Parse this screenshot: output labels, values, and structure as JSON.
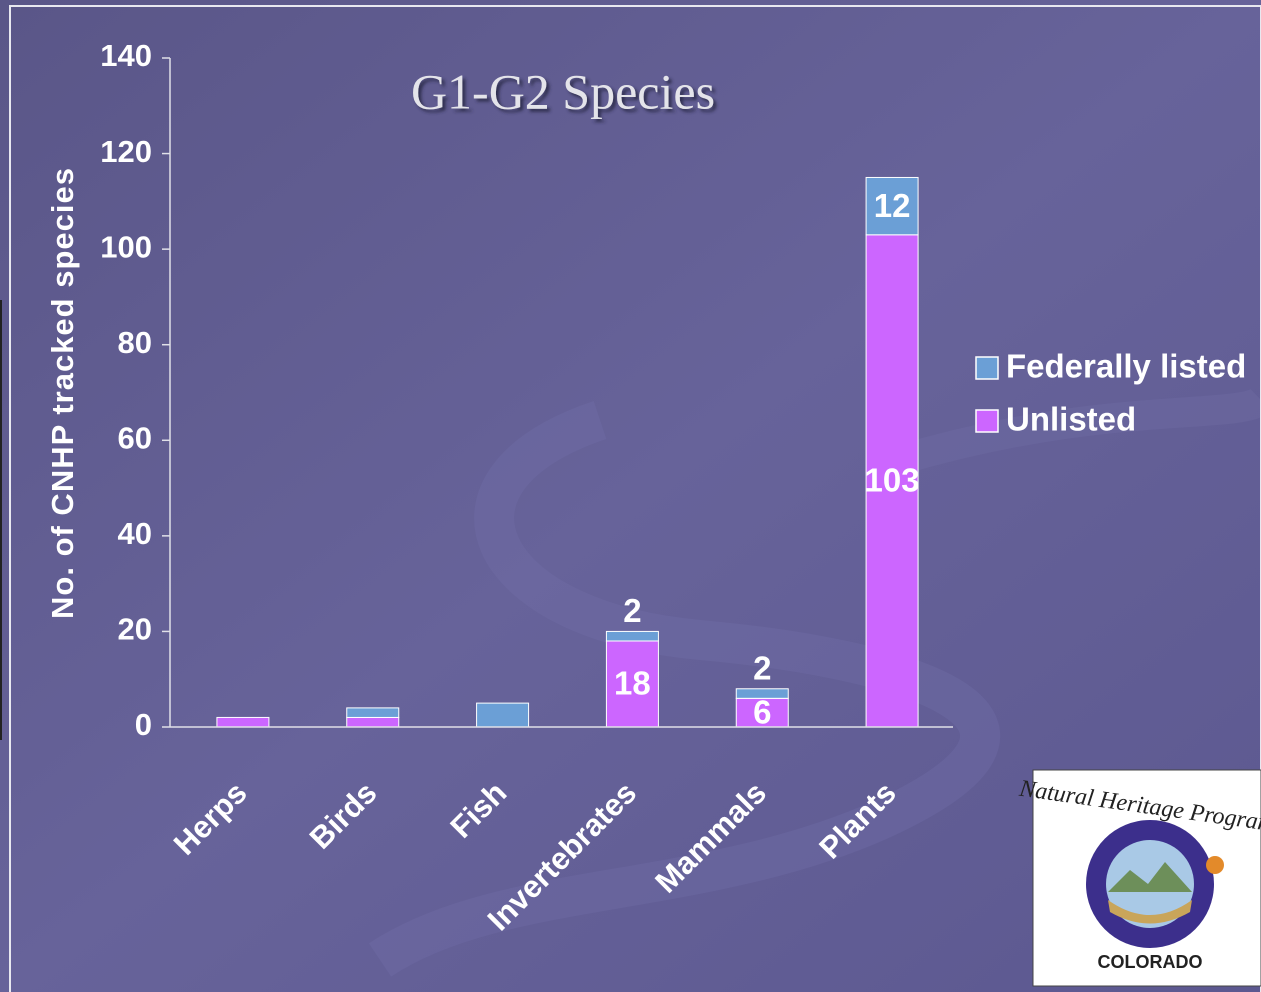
{
  "chart_data": {
    "type": "bar",
    "stacked": true,
    "title": "G1-G2 Species",
    "y_label": "No. of CNHP tracked species",
    "categories": [
      "Herps",
      "Birds",
      "Fish",
      "Invertebrates",
      "Mammals",
      "Plants"
    ],
    "series": [
      {
        "name": "Federally listed",
        "color": "#6b9fd6",
        "values": [
          0,
          2,
          5,
          2,
          2,
          12
        ],
        "value_labels": [
          null,
          null,
          null,
          "2",
          "2",
          "12"
        ]
      },
      {
        "name": "Unlisted",
        "color": "#cc66ff",
        "values": [
          2,
          2,
          0,
          18,
          6,
          103
        ],
        "value_labels": [
          null,
          null,
          null,
          "18",
          "6",
          "103"
        ]
      }
    ],
    "ylim": [
      0,
      140
    ],
    "yticks": [
      0,
      20,
      40,
      60,
      80,
      100,
      120,
      140
    ],
    "legend": "right"
  },
  "logo": {
    "top_text": "Natural Heritage Program",
    "bottom_text": "COLORADO"
  }
}
